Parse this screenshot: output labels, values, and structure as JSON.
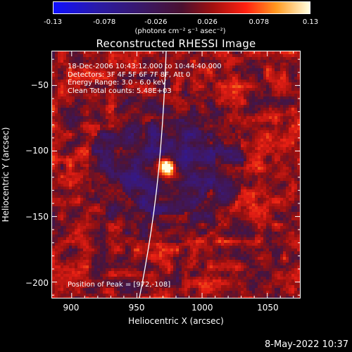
{
  "colorbar": {
    "tick_labels": [
      "-0.13",
      "-0.078",
      "-0.026",
      "0.026",
      "0.078",
      "0.13"
    ],
    "units": "(photons cm⁻² s⁻¹ asec⁻²)",
    "min": -0.13,
    "max": 0.13
  },
  "image": {
    "title": "Reconstructed RHESSI Image",
    "info_lines": [
      "18-Dec-2006 10:43:12.000 to 10:44:40.000",
      "Detectors: 3F 4F 5F 6F 7F 8F, Att 0",
      "Energy Range: 3.0 - 6.0 keV",
      "Clean     Total counts: 5.48E+03"
    ],
    "peak_label": "Position of Peak = [972,-108]",
    "peak": [
      972,
      -108
    ],
    "xlabel": "Heliocentric X (arcsec)",
    "ylabel": "Heliocentric Y (arcsec)",
    "xrange": [
      885,
      1075
    ],
    "yrange": [
      -212,
      -24
    ],
    "x_ticks": [
      900,
      950,
      1000,
      1050
    ],
    "x_tick_labels": [
      "900",
      "950",
      "1000",
      "1050"
    ],
    "y_ticks": [
      -50,
      -100,
      -150,
      -200
    ],
    "y_tick_labels": [
      "−50",
      "−100",
      "−150",
      "−200"
    ],
    "limb_color": "#ffffff"
  },
  "footer": {
    "timestamp": "8-May-2022 10:37"
  }
}
